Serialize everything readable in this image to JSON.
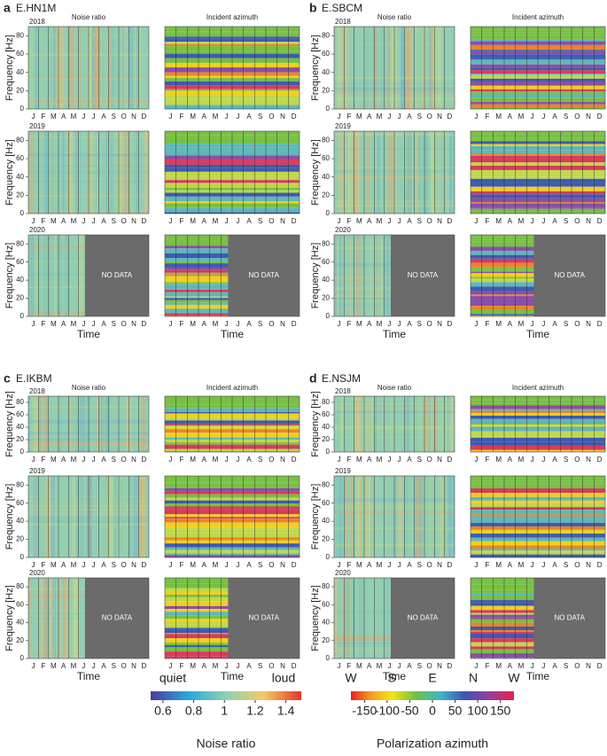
{
  "panels": [
    {
      "letter": "a",
      "station": "E.HN1M",
      "columns": [
        "Noise ratio",
        "Incident azimuth"
      ],
      "rows": [
        {
          "year": "2018"
        },
        {
          "year": "2019"
        },
        {
          "year": "2020",
          "no_data": "NO DATA"
        }
      ]
    },
    {
      "letter": "b",
      "station": "E.SBCM",
      "columns": [
        "Noise ratio",
        "Incident azimuth"
      ],
      "rows": [
        {
          "year": "2018"
        },
        {
          "year": "2019"
        },
        {
          "year": "2020",
          "no_data": "NO DATA"
        }
      ]
    },
    {
      "letter": "c",
      "station": "E.IKBM",
      "columns": [
        "Noise ratio",
        "Incident azimuth"
      ],
      "rows": [
        {
          "year": "2018"
        },
        {
          "year": "2019"
        },
        {
          "year": "2020",
          "no_data": "NO DATA"
        }
      ]
    },
    {
      "letter": "d",
      "station": "E.NSJM",
      "columns": [
        "Noise ratio",
        "Incident azimuth"
      ],
      "rows": [
        {
          "year": "2018"
        },
        {
          "year": "2019"
        },
        {
          "year": "2020",
          "no_data": "NO DATA"
        }
      ]
    }
  ],
  "axis": {
    "y_label": "Frequency [Hz]",
    "ylim": [
      0,
      90
    ],
    "yticks": [
      0,
      20,
      40,
      60,
      80
    ],
    "months": [
      "J",
      "F",
      "M",
      "A",
      "M",
      "J",
      "J",
      "A",
      "S",
      "O",
      "N",
      "D"
    ],
    "x_label": "Time"
  },
  "colorbars": [
    {
      "low_label": "quiet",
      "high_label": "loud",
      "range": [
        0.52,
        1.5
      ],
      "ticks": [
        0.6,
        0.8,
        1.0,
        1.2,
        1.4
      ],
      "title": "Noise ratio"
    },
    {
      "direction_labels": [
        "W",
        "S",
        "E",
        "N",
        "W"
      ],
      "range": [
        -180,
        180
      ],
      "ticks": [
        -150,
        -100,
        -50,
        0,
        50,
        100,
        150
      ],
      "title": "Polarization azimuth"
    }
  ]
}
